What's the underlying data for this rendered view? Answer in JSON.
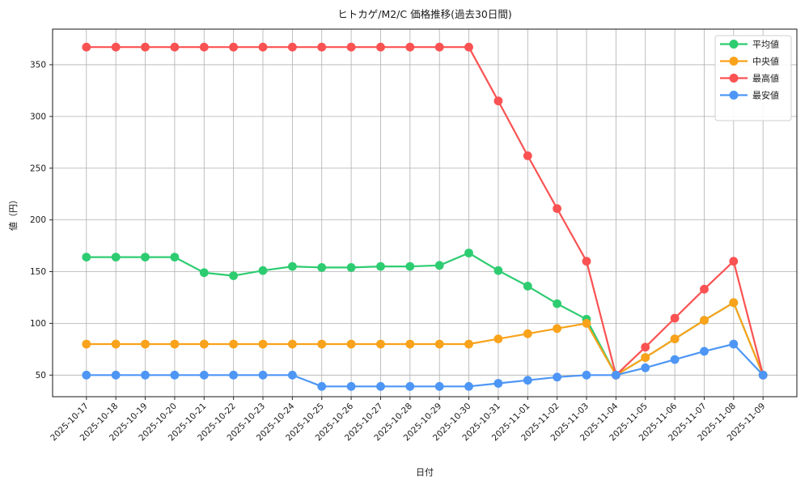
{
  "chart_data": {
    "type": "line",
    "title": "ヒトカゲ/M2/C 価格推移(過去30日間)",
    "xlabel": "日付",
    "ylabel": "値（円）",
    "categories": [
      "2025-10-17",
      "2025-10-18",
      "2025-10-19",
      "2025-10-20",
      "2025-10-21",
      "2025-10-22",
      "2025-10-23",
      "2025-10-24",
      "2025-10-25",
      "2025-10-26",
      "2025-10-27",
      "2025-10-28",
      "2025-10-29",
      "2025-10-30",
      "2025-10-31",
      "2025-11-01",
      "2025-11-02",
      "2025-11-03",
      "2025-11-04",
      "2025-11-05",
      "2025-11-06",
      "2025-11-07",
      "2025-11-08",
      "2025-11-09"
    ],
    "series": [
      {
        "key": "avg",
        "name": "平均値",
        "color": "#2ecc71",
        "values": [
          164,
          164,
          164,
          164,
          149,
          146,
          151,
          155,
          154,
          154,
          155,
          155,
          156,
          168,
          151,
          136,
          119,
          104,
          50,
          67,
          85,
          103,
          120,
          50
        ]
      },
      {
        "key": "median",
        "name": "中央値",
        "color": "#f9a21b",
        "values": [
          80,
          80,
          80,
          80,
          80,
          80,
          80,
          80,
          80,
          80,
          80,
          80,
          80,
          80,
          85,
          90,
          95,
          100,
          50,
          67,
          85,
          103,
          120,
          50
        ]
      },
      {
        "key": "max",
        "name": "最高値",
        "color": "#fa5252",
        "values": [
          367,
          367,
          367,
          367,
          367,
          367,
          367,
          367,
          367,
          367,
          367,
          367,
          367,
          367,
          315,
          262,
          211,
          160,
          50,
          77,
          105,
          133,
          160,
          50
        ]
      },
      {
        "key": "min",
        "name": "最安値",
        "color": "#4d96f5",
        "values": [
          50,
          50,
          50,
          50,
          50,
          50,
          50,
          50,
          39,
          39,
          39,
          39,
          39,
          39,
          42,
          45,
          48,
          50,
          50,
          57,
          65,
          73,
          80,
          50
        ]
      }
    ],
    "yticks": [
      50,
      100,
      150,
      200,
      250,
      300,
      350
    ],
    "ylim": [
      29.1,
      384.4
    ],
    "grid": true,
    "grid_color": "#b0b0b0",
    "spine_color": "#2b2b2b",
    "legend_position": "upper right",
    "x_tick_rotation_deg": 45
  }
}
